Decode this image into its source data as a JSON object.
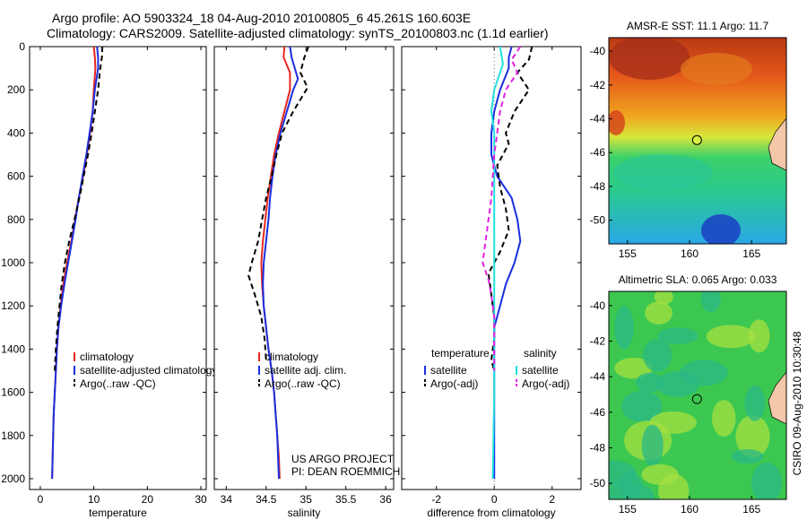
{
  "title_line1": "Argo profile: AO 5903324_18 04-Aug-2010 20100805_6 45.261S 160.603E",
  "title_line2": "Climatology: CARS2009. Satellite-adjusted climatology: synTS_20100803.nc (1.1d earlier)",
  "colors": {
    "climatology": "#e8271e",
    "satellite": "#1a2ee0",
    "argo": "#000000",
    "satellite_salinity": "#22e0e0",
    "argo_salinity": "#e021e0"
  },
  "chart_data": [
    {
      "type": "line",
      "xlabel": "temperature",
      "ylabel": "",
      "xlim": [
        -2,
        31
      ],
      "ylim": [
        2050,
        0
      ],
      "xticks": [
        0,
        10,
        20,
        30
      ],
      "yticks": [
        0,
        200,
        400,
        600,
        800,
        1000,
        1200,
        1400,
        1600,
        1800,
        2000
      ],
      "legend": [
        "climatology",
        "satellite-adjusted climatology",
        "Argo(..raw -QC)"
      ],
      "series": [
        {
          "name": "climatology",
          "style": "solid",
          "points": [
            [
              10.0,
              0
            ],
            [
              10.2,
              50
            ],
            [
              10.3,
              100
            ],
            [
              10.0,
              200
            ],
            [
              9.8,
              300
            ],
            [
              9.3,
              400
            ],
            [
              8.7,
              500
            ],
            [
              8.0,
              600
            ],
            [
              7.2,
              700
            ],
            [
              6.5,
              800
            ],
            [
              5.8,
              900
            ],
            [
              5.0,
              1000
            ],
            [
              4.3,
              1100
            ],
            [
              3.8,
              1200
            ],
            [
              3.4,
              1300
            ],
            [
              3.1,
              1400
            ],
            [
              2.9,
              1500
            ],
            [
              2.7,
              1600
            ],
            [
              2.5,
              1700
            ],
            [
              2.4,
              1800
            ],
            [
              2.3,
              1900
            ],
            [
              2.2,
              2000
            ]
          ]
        },
        {
          "name": "satellite-adjusted climatology",
          "style": "solid",
          "points": [
            [
              10.6,
              0
            ],
            [
              10.8,
              50
            ],
            [
              10.8,
              100
            ],
            [
              10.2,
              200
            ],
            [
              9.8,
              300
            ],
            [
              9.2,
              400
            ],
            [
              8.6,
              500
            ],
            [
              7.9,
              600
            ],
            [
              7.2,
              700
            ],
            [
              6.6,
              800
            ],
            [
              5.9,
              900
            ],
            [
              5.2,
              1000
            ],
            [
              4.5,
              1100
            ],
            [
              3.9,
              1200
            ],
            [
              3.4,
              1300
            ],
            [
              3.1,
              1400
            ],
            [
              2.9,
              1500
            ],
            [
              2.7,
              1600
            ],
            [
              2.5,
              1700
            ],
            [
              2.4,
              1800
            ],
            [
              2.3,
              1900
            ],
            [
              2.2,
              2000
            ]
          ]
        },
        {
          "name": "Argo(..raw -QC)",
          "style": "dashed",
          "points": [
            [
              11.6,
              0
            ],
            [
              11.5,
              50
            ],
            [
              11.2,
              100
            ],
            [
              10.8,
              200
            ],
            [
              10.2,
              300
            ],
            [
              9.6,
              400
            ],
            [
              8.9,
              500
            ],
            [
              8.1,
              600
            ],
            [
              7.3,
              700
            ],
            [
              6.4,
              800
            ],
            [
              5.4,
              900
            ],
            [
              4.6,
              1000
            ],
            [
              4.0,
              1100
            ],
            [
              3.6,
              1200
            ],
            [
              3.2,
              1300
            ],
            [
              2.9,
              1400
            ],
            [
              2.7,
              1500
            ]
          ]
        }
      ]
    },
    {
      "type": "line",
      "xlabel": "salinity",
      "ylabel": "",
      "xlim": [
        33.85,
        36.1
      ],
      "ylim": [
        2050,
        0
      ],
      "xticks": [
        34,
        34.5,
        35,
        35.5,
        36
      ],
      "yticks": [
        0,
        200,
        400,
        600,
        800,
        1000,
        1200,
        1400,
        1600,
        1800,
        2000
      ],
      "legend": [
        "climatology",
        "satellite adj. clim.",
        "Argo(..raw -QC)"
      ],
      "series": [
        {
          "name": "climatology",
          "style": "solid",
          "points": [
            [
              34.73,
              0
            ],
            [
              34.72,
              50
            ],
            [
              34.8,
              120
            ],
            [
              34.8,
              200
            ],
            [
              34.73,
              300
            ],
            [
              34.66,
              400
            ],
            [
              34.6,
              500
            ],
            [
              34.56,
              600
            ],
            [
              34.52,
              700
            ],
            [
              34.49,
              800
            ],
            [
              34.46,
              900
            ],
            [
              34.44,
              1000
            ],
            [
              34.45,
              1100
            ],
            [
              34.47,
              1200
            ],
            [
              34.5,
              1300
            ],
            [
              34.53,
              1400
            ],
            [
              34.57,
              1500
            ],
            [
              34.6,
              1600
            ],
            [
              34.62,
              1700
            ],
            [
              34.64,
              1800
            ],
            [
              34.66,
              1900
            ],
            [
              34.67,
              2000
            ]
          ]
        },
        {
          "name": "satellite adj. clim.",
          "style": "solid",
          "points": [
            [
              34.8,
              0
            ],
            [
              34.82,
              50
            ],
            [
              34.9,
              150
            ],
            [
              34.84,
              200
            ],
            [
              34.76,
              300
            ],
            [
              34.68,
              400
            ],
            [
              34.62,
              500
            ],
            [
              34.58,
              600
            ],
            [
              34.55,
              700
            ],
            [
              34.53,
              800
            ],
            [
              34.5,
              900
            ],
            [
              34.47,
              1000
            ],
            [
              34.46,
              1100
            ],
            [
              34.47,
              1200
            ],
            [
              34.5,
              1300
            ],
            [
              34.53,
              1400
            ],
            [
              34.57,
              1500
            ],
            [
              34.6,
              1600
            ],
            [
              34.62,
              1700
            ],
            [
              34.64,
              1800
            ],
            [
              34.65,
              1900
            ],
            [
              34.66,
              2000
            ]
          ]
        },
        {
          "name": "Argo(..raw -QC)",
          "style": "dashed",
          "points": [
            [
              35.03,
              0
            ],
            [
              34.98,
              50
            ],
            [
              34.93,
              120
            ],
            [
              35.02,
              190
            ],
            [
              34.84,
              300
            ],
            [
              34.7,
              400
            ],
            [
              34.63,
              500
            ],
            [
              34.57,
              600
            ],
            [
              34.5,
              700
            ],
            [
              34.45,
              800
            ],
            [
              34.4,
              900
            ],
            [
              34.32,
              1000
            ],
            [
              34.28,
              1060
            ],
            [
              34.36,
              1150
            ],
            [
              34.44,
              1250
            ],
            [
              34.48,
              1350
            ],
            [
              34.5,
              1450
            ]
          ]
        }
      ]
    },
    {
      "type": "line",
      "xlabel": "difference from climatology",
      "ylabel": "",
      "xlim": [
        -3.2,
        3.0
      ],
      "ylim": [
        2050,
        0
      ],
      "xticks": [
        -2,
        0,
        2
      ],
      "yticks": [
        0,
        200,
        400,
        600,
        800,
        1000,
        1200,
        1400,
        1600,
        1800,
        2000
      ],
      "legend_left_header": "temperature",
      "legend_right_header": "salinity",
      "legend": [
        "satellite",
        "Argo(-adj)",
        "satellite",
        "Argo(-adj)"
      ],
      "series": [
        {
          "name": "satellite",
          "group": "temperature",
          "style": "solid",
          "points": [
            [
              0.6,
              0
            ],
            [
              0.5,
              50
            ],
            [
              0.5,
              100
            ],
            [
              0.2,
              200
            ],
            [
              0.0,
              300
            ],
            [
              -0.1,
              400
            ],
            [
              -0.1,
              500
            ],
            [
              0.1,
              600
            ],
            [
              0.6,
              700
            ],
            [
              0.8,
              800
            ],
            [
              0.9,
              900
            ],
            [
              0.7,
              1000
            ],
            [
              0.4,
              1100
            ],
            [
              0.2,
              1200
            ],
            [
              0.0,
              1300
            ],
            [
              0.0,
              1500
            ],
            [
              0.0,
              1700
            ],
            [
              0.0,
              2000
            ]
          ]
        },
        {
          "name": "Argo(-adj)",
          "group": "temperature",
          "style": "dashed",
          "points": [
            [
              1.3,
              0
            ],
            [
              1.2,
              60
            ],
            [
              0.8,
              120
            ],
            [
              1.2,
              200
            ],
            [
              0.7,
              300
            ],
            [
              0.4,
              400
            ],
            [
              0.5,
              450
            ],
            [
              0.1,
              550
            ],
            [
              0.2,
              650
            ],
            [
              0.4,
              750
            ],
            [
              0.5,
              850
            ],
            [
              0.2,
              950
            ],
            [
              -0.2,
              1050
            ],
            [
              -0.1,
              1150
            ],
            [
              0.0,
              1250
            ],
            [
              0.0,
              1350
            ],
            [
              -0.1,
              1450
            ],
            [
              0.0,
              1500
            ]
          ]
        },
        {
          "name": "satellite",
          "group": "salinity",
          "style": "solid",
          "points": [
            [
              0.2,
              0
            ],
            [
              0.3,
              80
            ],
            [
              0.0,
              200
            ],
            [
              -0.1,
              300
            ],
            [
              0.0,
              400
            ],
            [
              0.0,
              600
            ],
            [
              0.0,
              800
            ],
            [
              0.0,
              1000
            ],
            [
              0.0,
              1300
            ],
            [
              0.0,
              1600
            ],
            [
              -0.05,
              2000
            ]
          ]
        },
        {
          "name": "Argo(-adj)",
          "group": "salinity",
          "style": "dashed",
          "points": [
            [
              0.9,
              0
            ],
            [
              0.6,
              60
            ],
            [
              0.8,
              120
            ],
            [
              0.4,
              200
            ],
            [
              0.2,
              300
            ],
            [
              0.1,
              400
            ],
            [
              0.0,
              500
            ],
            [
              -0.1,
              700
            ],
            [
              -0.2,
              800
            ],
            [
              -0.3,
              900
            ],
            [
              -0.4,
              1000
            ],
            [
              -0.2,
              1080
            ],
            [
              -0.1,
              1150
            ],
            [
              0.0,
              1250
            ],
            [
              0.0,
              1400
            ],
            [
              0.0,
              1500
            ]
          ]
        }
      ]
    },
    {
      "type": "heatmap",
      "title": "AMSR-E SST: 11.1 Argo: 11.7",
      "xlim": [
        153.5,
        167.8
      ],
      "ylim": [
        -51.4,
        -39.2
      ],
      "xticks": [
        155,
        160,
        165
      ],
      "yticks": [
        -40,
        -42,
        -44,
        -46,
        -48,
        -50
      ],
      "marker": {
        "lon": 160.6,
        "lat": -45.26
      }
    },
    {
      "type": "heatmap",
      "title": "Altimetric SLA: 0.065 Argo: 0.033",
      "xlim": [
        153.5,
        167.8
      ],
      "ylim": [
        -50.9,
        -39.2
      ],
      "xticks": [
        155,
        160,
        165
      ],
      "yticks": [
        -40,
        -42,
        -44,
        -46,
        -48,
        -50
      ],
      "marker": {
        "lon": 160.6,
        "lat": -45.26
      }
    }
  ],
  "credit_line1": "US ARGO PROJECT",
  "credit_line2": "PI: DEAN ROEMMICH",
  "side_stamp": "CSIRO 09-Aug-2010 10:30:48"
}
